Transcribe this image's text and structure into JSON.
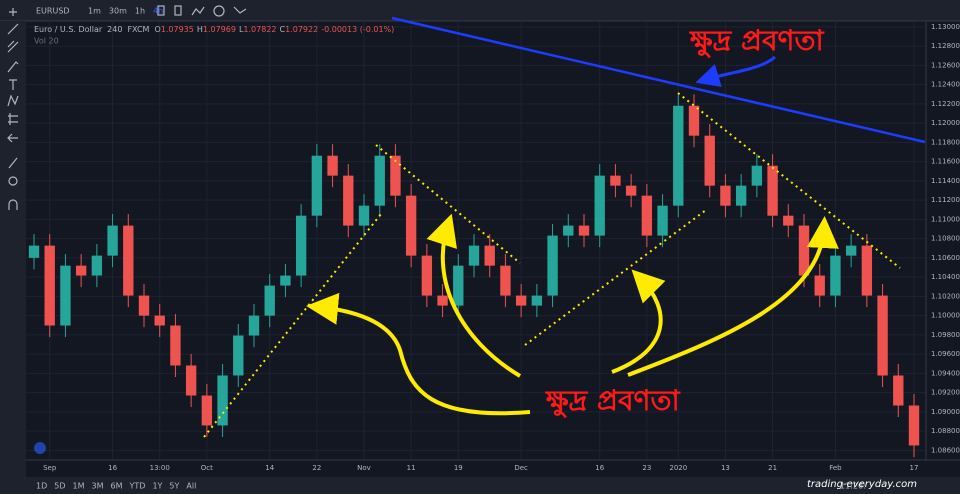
{
  "toolbar": {
    "symbol": "EURUSD",
    "intervals": [
      "1m",
      "30m",
      "1h",
      "4h"
    ]
  },
  "legend": {
    "name": "Euro / U.S. Dollar",
    "interval": "240",
    "source": "FXCM",
    "o_label": "O",
    "o": "1.07935",
    "h_label": "H",
    "h": "1.07969",
    "l_label": "L",
    "l": "1.07822",
    "c_label": "C",
    "c": "1.07922",
    "change": "-0.00013 (-0.01%)",
    "volume": "Vol 20"
  },
  "ranges": [
    "1D",
    "5D",
    "1M",
    "3M",
    "6M",
    "YTD",
    "1Y",
    "5Y",
    "All"
  ],
  "clock": "11:26:",
  "watermark": "trading-everyday.com",
  "chart_data": {
    "type": "candlestick",
    "annotations": [
      "ক্ষুদ্র প্রবণতা",
      "ক্ষুদ্র প্রবণতা"
    ],
    "up_color": "#26a69a",
    "down_color": "#ef5350",
    "grid": true,
    "categories": [
      null,
      "Sep",
      null,
      null,
      null,
      "16",
      null,
      null,
      "13:00",
      null,
      null,
      "Oct",
      null,
      null,
      null,
      "14",
      null,
      null,
      "22",
      null,
      null,
      "Nov",
      null,
      null,
      "11",
      null,
      null,
      "19",
      null,
      null,
      null,
      "Dec",
      null,
      null,
      null,
      null,
      "16",
      null,
      null,
      "23",
      null,
      "2020",
      null,
      null,
      "13",
      null,
      null,
      "21",
      null,
      null,
      null,
      "Feb",
      null,
      null,
      null,
      null,
      "17"
    ],
    "open": [
      1.106,
      1.10727,
      1.09897,
      1.10519,
      1.10416,
      1.10623,
      1.10935,
      1.10208,
      1.1,
      1.09897,
      1.09482,
      1.0917,
      1.08859,
      1.09378,
      1.09793,
      1.1,
      1.10312,
      1.10416,
      1.11038,
      1.11661,
      1.11454,
      1.10935,
      1.11142,
      1.11661,
      1.11246,
      1.10623,
      1.10208,
      1.10104,
      1.10519,
      1.10727,
      1.10519,
      1.10208,
      1.10104,
      1.10208,
      1.10831,
      1.10935,
      1.10831,
      1.11454,
      1.1135,
      1.11246,
      1.10831,
      1.11142,
      1.1218,
      1.11869,
      1.1135,
      1.11142,
      1.1135,
      1.11557,
      1.11038,
      1.10935,
      1.10416,
      1.10208,
      1.10623,
      1.10727,
      1.10208,
      1.09378,
      1.09066
    ],
    "high": [
      1.10847,
      1.10847,
      1.10639,
      1.10639,
      1.10743,
      1.11055,
      1.11055,
      1.10328,
      1.1012,
      1.10017,
      1.09602,
      1.0929,
      1.09498,
      1.09913,
      1.1012,
      1.10432,
      1.10536,
      1.11158,
      1.11781,
      1.11781,
      1.11574,
      1.11262,
      1.11781,
      1.11781,
      1.11366,
      1.10743,
      1.10328,
      1.10639,
      1.10847,
      1.10847,
      1.10639,
      1.10328,
      1.10328,
      1.10951,
      1.11055,
      1.11055,
      1.11574,
      1.11574,
      1.1147,
      1.11366,
      1.11262,
      1.123,
      1.123,
      1.11989,
      1.1147,
      1.1147,
      1.11677,
      1.11677,
      1.11158,
      1.11055,
      1.10536,
      1.10743,
      1.10847,
      1.10847,
      1.10328,
      1.09498,
      1.09186
    ],
    "low": [
      1.1048,
      1.09777,
      1.09777,
      1.10296,
      1.10296,
      1.10503,
      1.10088,
      1.0988,
      1.09777,
      1.09362,
      1.0905,
      1.08739,
      1.08739,
      1.09258,
      1.09673,
      1.0988,
      1.10192,
      1.10296,
      1.10918,
      1.11334,
      1.10815,
      1.10815,
      1.11022,
      1.11126,
      1.10503,
      1.10088,
      1.09984,
      1.09984,
      1.10399,
      1.10399,
      1.10088,
      1.09984,
      1.09984,
      1.10088,
      1.10711,
      1.10711,
      1.10711,
      1.1123,
      1.11126,
      1.10711,
      1.10711,
      1.11022,
      1.11749,
      1.1123,
      1.11022,
      1.11022,
      1.1123,
      1.10918,
      1.10815,
      1.10296,
      1.10088,
      1.10088,
      1.10503,
      1.10088,
      1.09258,
      1.08946,
      1.08531
    ],
    "close": [
      1.10727,
      1.09897,
      1.10519,
      1.10416,
      1.10623,
      1.10935,
      1.10208,
      1.1,
      1.09897,
      1.09482,
      1.0917,
      1.08859,
      1.09378,
      1.09793,
      1.1,
      1.10312,
      1.10416,
      1.11038,
      1.11661,
      1.11454,
      1.10935,
      1.11142,
      1.11661,
      1.11246,
      1.10623,
      1.10208,
      1.10104,
      1.10519,
      1.10727,
      1.10519,
      1.10208,
      1.10104,
      1.10208,
      1.10831,
      1.10935,
      1.10831,
      1.11454,
      1.1135,
      1.11246,
      1.10831,
      1.11142,
      1.1218,
      1.11869,
      1.1135,
      1.11142,
      1.1135,
      1.11557,
      1.11038,
      1.10935,
      1.10416,
      1.10208,
      1.10623,
      1.10727,
      1.10208,
      1.09378,
      1.09066,
      1.08651
    ],
    "ylim": [
      1.085,
      1.1305
    ],
    "yticks": [
      {
        "value": 1.13,
        "label": "1.13000"
      },
      {
        "value": 1.128,
        "label": "1.12800"
      },
      {
        "value": 1.126,
        "label": "1.12600"
      },
      {
        "value": 1.124,
        "label": "1.12400"
      },
      {
        "value": 1.122,
        "label": "1.12200"
      },
      {
        "value": 1.12,
        "label": "1.12000"
      },
      {
        "value": 1.118,
        "label": "1.11800"
      },
      {
        "value": 1.116,
        "label": "1.11600"
      },
      {
        "value": 1.114,
        "label": "1.11400"
      },
      {
        "value": 1.112,
        "label": "1.11200"
      },
      {
        "value": 1.11,
        "label": "1.11000"
      },
      {
        "value": 1.108,
        "label": "1.10800"
      },
      {
        "value": 1.106,
        "label": "1.10600"
      },
      {
        "value": 1.104,
        "label": "1.10400"
      },
      {
        "value": 1.102,
        "label": "1.10200"
      },
      {
        "value": 1.1,
        "label": "1.10000"
      },
      {
        "value": 1.098,
        "label": "1.09800"
      },
      {
        "value": 1.096,
        "label": "1.09600"
      },
      {
        "value": 1.094,
        "label": "1.09400"
      },
      {
        "value": 1.092,
        "label": "1.09200"
      },
      {
        "value": 1.09,
        "label": "1.09000"
      },
      {
        "value": 1.088,
        "label": "1.08800"
      },
      {
        "value": 1.086,
        "label": "1.08600"
      }
    ]
  }
}
